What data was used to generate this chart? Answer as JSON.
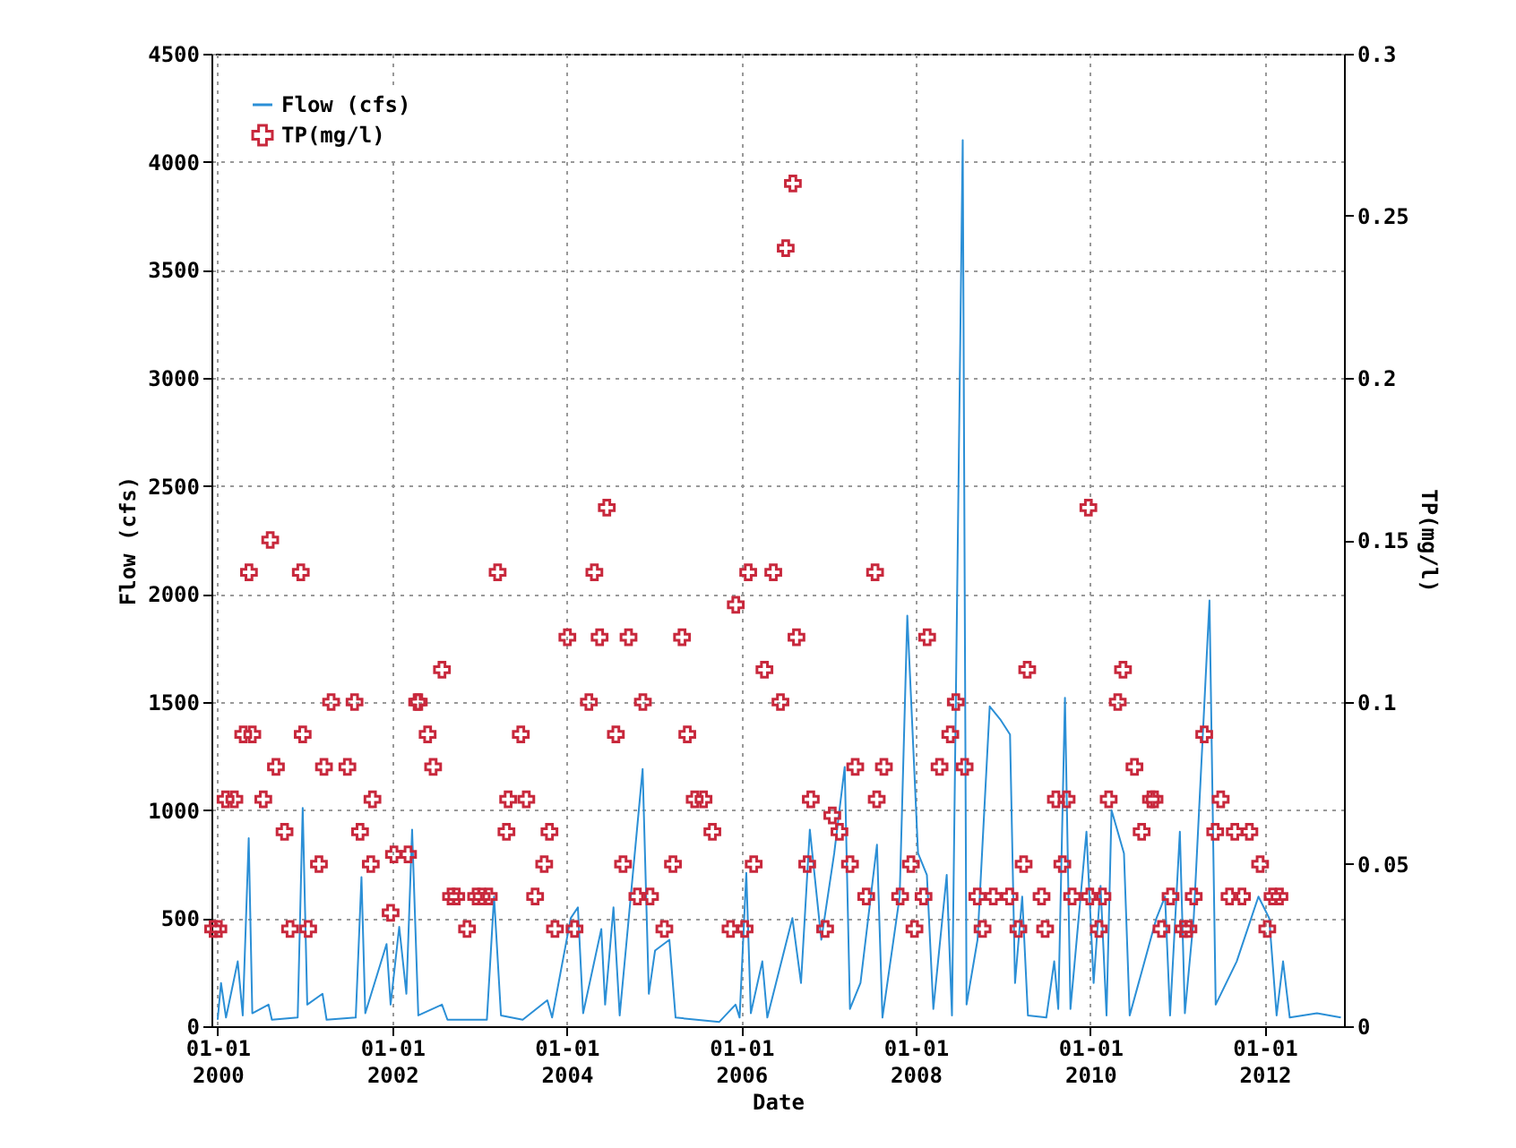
{
  "chart_data": {
    "type": "line",
    "xlabel": "Date",
    "ylabel": "Flow (cfs)",
    "y2label": "TP(mg/l)",
    "xlim": [
      "1999-12-06",
      "2012-11-28"
    ],
    "xticks": [
      {
        "value": "2000-01-01",
        "label": "01-01 2000"
      },
      {
        "value": "2002-01-01",
        "label": "01-01 2002"
      },
      {
        "value": "2004-01-01",
        "label": "01-01 2004"
      },
      {
        "value": "2006-01-01",
        "label": "01-01 2006"
      },
      {
        "value": "2008-01-01",
        "label": "01-01 2008"
      },
      {
        "value": "2010-01-01",
        "label": "01-01 2010"
      },
      {
        "value": "2012-01-01",
        "label": "01-01 2012"
      }
    ],
    "ylim": [
      0,
      4500
    ],
    "yticks": [
      0,
      500,
      1000,
      1500,
      2000,
      2500,
      3000,
      3500,
      4000,
      4500
    ],
    "y2lim": [
      0,
      0.3
    ],
    "y2ticks": [
      0,
      0.05,
      0.1,
      0.15,
      0.2,
      0.25,
      0.3
    ],
    "grid": true,
    "legend": "top left",
    "series": [
      {
        "name": "Flow (cfs)",
        "color": "#2b8fd6",
        "line_style": "solid",
        "x": [
          "2000-01-01",
          "2000-01-15",
          "2000-02-05",
          "2000-03-25",
          "2000-04-15",
          "2000-05-10",
          "2000-05-25",
          "2000-08-01",
          "2000-08-15",
          "2000-12-01",
          "2000-12-22",
          "2001-01-10",
          "2001-03-15",
          "2001-04-01",
          "2001-08-01",
          "2001-08-25",
          "2001-09-10",
          "2001-12-08",
          "2001-12-25",
          "2002-01-30",
          "2002-03-01",
          "2002-03-25",
          "2002-04-20",
          "2002-07-28",
          "2002-08-20",
          "2003-02-01",
          "2003-03-03",
          "2003-04-01",
          "2003-07-01",
          "2003-10-12",
          "2003-11-01",
          "2004-01-18",
          "2004-02-17",
          "2004-03-10",
          "2004-05-25",
          "2004-06-10",
          "2004-07-15",
          "2004-08-10",
          "2004-11-14",
          "2004-12-10",
          "2005-01-05",
          "2005-03-06",
          "2005-04-01",
          "2005-10-01",
          "2005-12-08",
          "2005-12-25",
          "2006-01-22",
          "2006-02-10",
          "2006-03-30",
          "2006-04-20",
          "2006-08-03",
          "2006-09-08",
          "2006-10-15",
          "2006-12-02",
          "2007-01-25",
          "2007-03-10",
          "2007-04-01",
          "2007-05-15",
          "2007-07-23",
          "2007-08-15",
          "2007-10-26",
          "2007-11-27",
          "2008-01-11",
          "2008-02-17",
          "2008-03-15",
          "2008-05-10",
          "2008-06-01",
          "2008-07-16",
          "2008-08-01",
          "2008-09-16",
          "2008-11-06",
          "2008-12-20",
          "2009-01-30",
          "2009-02-20",
          "2009-03-22",
          "2009-04-15",
          "2009-07-01",
          "2009-08-03",
          "2009-08-20",
          "2009-09-17",
          "2009-10-10",
          "2009-12-16",
          "2010-01-15",
          "2010-02-13",
          "2010-03-10",
          "2010-03-31",
          "2010-05-22",
          "2010-06-15",
          "2010-10-05",
          "2010-11-10",
          "2010-12-01",
          "2011-01-11",
          "2011-02-01",
          "2011-03-10",
          "2011-05-15",
          "2011-06-10",
          "2011-09-06",
          "2011-12-06",
          "2012-01-20",
          "2012-02-20",
          "2012-03-18",
          "2012-04-15",
          "2012-08-07",
          "2012-11-15"
        ],
        "values": [
          30,
          200,
          40,
          300,
          50,
          870,
          60,
          100,
          30,
          40,
          1010,
          100,
          150,
          30,
          40,
          690,
          60,
          380,
          100,
          460,
          150,
          910,
          50,
          100,
          30,
          30,
          600,
          50,
          30,
          120,
          40,
          500,
          550,
          60,
          450,
          100,
          550,
          50,
          1190,
          150,
          350,
          400,
          40,
          20,
          100,
          40,
          710,
          60,
          300,
          40,
          500,
          200,
          910,
          400,
          800,
          1200,
          80,
          200,
          840,
          40,
          600,
          1900,
          800,
          700,
          80,
          700,
          50,
          4100,
          100,
          400,
          1480,
          1420,
          1350,
          200,
          600,
          50,
          40,
          300,
          80,
          1520,
          80,
          900,
          200,
          650,
          50,
          1000,
          800,
          50,
          500,
          600,
          50,
          900,
          60,
          500,
          1970,
          100,
          300,
          600,
          500,
          50,
          300,
          40,
          60,
          40
        ]
      },
      {
        "name": "TP(mg/l)",
        "type": "scatter",
        "axis": "y2",
        "marker": "cross",
        "color": "#c8283c",
        "x": [
          "1999-12-13",
          "2000-01-04",
          "2000-02-03",
          "2000-03-11",
          "2000-04-17",
          "2000-05-11",
          "2000-05-25",
          "2000-07-10",
          "2000-08-08",
          "2000-09-01",
          "2000-10-07",
          "2000-10-30",
          "2000-12-14",
          "2000-12-22",
          "2001-01-14",
          "2001-02-28",
          "2001-03-21",
          "2001-04-20",
          "2001-06-27",
          "2001-07-27",
          "2001-08-19",
          "2001-10-03",
          "2001-10-10",
          "2001-12-25",
          "2002-01-08",
          "2002-03-08",
          "2002-04-15",
          "2002-04-22",
          "2002-05-29",
          "2002-06-21",
          "2002-07-28",
          "2002-09-04",
          "2002-09-26",
          "2002-11-10",
          "2002-12-18",
          "2003-01-10",
          "2003-02-09",
          "2003-03-18",
          "2003-04-24",
          "2003-05-01",
          "2003-06-23",
          "2003-07-16",
          "2003-08-22",
          "2003-09-29",
          "2003-10-21",
          "2003-11-13",
          "2004-01-04",
          "2004-02-03",
          "2004-04-03",
          "2004-04-26",
          "2004-05-18",
          "2004-06-17",
          "2004-07-25",
          "2004-08-24",
          "2004-09-16",
          "2004-10-23",
          "2004-11-15",
          "2004-12-15",
          "2005-02-13",
          "2005-03-21",
          "2005-04-28",
          "2005-05-20",
          "2005-06-20",
          "2005-07-27",
          "2005-09-02",
          "2005-11-17",
          "2005-12-09",
          "2006-01-15",
          "2006-01-30",
          "2006-02-22",
          "2006-04-08",
          "2006-05-15",
          "2006-06-14",
          "2006-07-06",
          "2006-08-05",
          "2006-08-20",
          "2006-10-04",
          "2006-10-19",
          "2006-12-18",
          "2007-01-17",
          "2007-02-16",
          "2007-04-01",
          "2007-04-23",
          "2007-06-08",
          "2007-07-15",
          "2007-07-22",
          "2007-08-21",
          "2007-10-28",
          "2007-12-12",
          "2007-12-27",
          "2008-02-03",
          "2008-02-18",
          "2008-04-10",
          "2008-05-25",
          "2008-06-17",
          "2008-07-24",
          "2008-09-15",
          "2008-10-07",
          "2008-11-21",
          "2009-01-28",
          "2009-03-06",
          "2009-03-28",
          "2009-04-12",
          "2009-06-11",
          "2009-06-26",
          "2009-08-10",
          "2009-09-06",
          "2009-09-24",
          "2009-10-17",
          "2009-12-24",
          "2009-12-30",
          "2010-02-06",
          "2010-02-21",
          "2010-03-19",
          "2010-04-26",
          "2010-05-18",
          "2010-07-05",
          "2010-08-04",
          "2010-09-12",
          "2010-09-27",
          "2010-10-26",
          "2010-12-03",
          "2011-01-26",
          "2011-02-16",
          "2011-03-10",
          "2011-04-23",
          "2011-06-08",
          "2011-07-01",
          "2011-08-07",
          "2011-08-29",
          "2011-09-28",
          "2011-10-29",
          "2011-12-13",
          "2012-01-12",
          "2012-02-03",
          "2012-03-03"
        ],
        "values": [
          0.03,
          0.03,
          0.07,
          0.07,
          0.09,
          0.14,
          0.09,
          0.07,
          0.15,
          0.08,
          0.06,
          0.03,
          0.14,
          0.09,
          0.03,
          0.05,
          0.08,
          0.1,
          0.08,
          0.1,
          0.06,
          0.05,
          0.07,
          0.035,
          0.053,
          0.053,
          0.1,
          0.1,
          0.09,
          0.08,
          0.11,
          0.04,
          0.04,
          0.03,
          0.04,
          0.04,
          0.04,
          0.14,
          0.06,
          0.07,
          0.09,
          0.07,
          0.04,
          0.05,
          0.06,
          0.03,
          0.12,
          0.03,
          0.1,
          0.14,
          0.12,
          0.16,
          0.09,
          0.05,
          0.12,
          0.04,
          0.1,
          0.04,
          0.03,
          0.05,
          0.12,
          0.09,
          0.07,
          0.07,
          0.06,
          0.03,
          0.13,
          0.03,
          0.14,
          0.05,
          0.11,
          0.14,
          0.1,
          0.24,
          0.26,
          0.12,
          0.05,
          0.07,
          0.03,
          0.065,
          0.06,
          0.05,
          0.08,
          0.04,
          0.14,
          0.07,
          0.08,
          0.04,
          0.05,
          0.03,
          0.04,
          0.12,
          0.08,
          0.09,
          0.1,
          0.08,
          0.04,
          0.03,
          0.04,
          0.04,
          0.03,
          0.05,
          0.11,
          0.04,
          0.03,
          0.07,
          0.05,
          0.07,
          0.04,
          0.16,
          0.04,
          0.03,
          0.04,
          0.07,
          0.1,
          0.11,
          0.08,
          0.06,
          0.07,
          0.07,
          0.03,
          0.04,
          0.03,
          0.03,
          0.04,
          0.09,
          0.06,
          0.07,
          0.04,
          0.06,
          0.04,
          0.06,
          0.05,
          0.03,
          0.04,
          0.04
        ]
      }
    ]
  }
}
